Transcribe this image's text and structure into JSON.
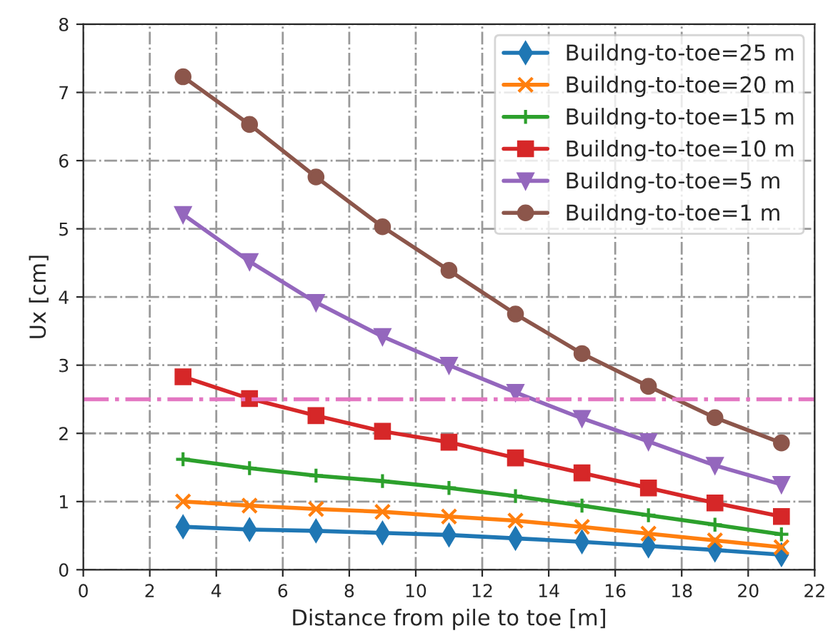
{
  "chart_data": {
    "type": "line",
    "xlabel": "Distance from pile to toe [m]",
    "ylabel": "Ux [cm]",
    "x": [
      3,
      5,
      7,
      9,
      11,
      13,
      15,
      17,
      19,
      21
    ],
    "series": [
      {
        "name": "Buildng-to-toe=25 m",
        "color": "#1f77b4",
        "marker": "diamond",
        "values": [
          0.63,
          0.59,
          0.57,
          0.54,
          0.51,
          0.46,
          0.41,
          0.35,
          0.29,
          0.22
        ]
      },
      {
        "name": "Buildng-to-toe=20 m",
        "color": "#ff7f0e",
        "marker": "x",
        "values": [
          1.0,
          0.94,
          0.89,
          0.85,
          0.78,
          0.72,
          0.63,
          0.53,
          0.43,
          0.33
        ]
      },
      {
        "name": "Buildng-to-toe=15 m",
        "color": "#2ca02c",
        "marker": "plus",
        "values": [
          1.62,
          1.49,
          1.38,
          1.3,
          1.2,
          1.08,
          0.94,
          0.8,
          0.66,
          0.52
        ]
      },
      {
        "name": "Buildng-to-toe=10 m",
        "color": "#d62728",
        "marker": "square",
        "values": [
          2.83,
          2.51,
          2.26,
          2.03,
          1.87,
          1.64,
          1.42,
          1.2,
          0.98,
          0.78
        ]
      },
      {
        "name": "Buildng-to-toe=5 m",
        "color": "#9467bd",
        "marker": "triangle_down",
        "values": [
          5.21,
          4.52,
          3.92,
          3.42,
          3.0,
          2.6,
          2.22,
          1.88,
          1.53,
          1.25
        ]
      },
      {
        "name": "Buildng-to-toe=1 m",
        "color": "#8c564b",
        "marker": "circle",
        "values": [
          7.23,
          6.53,
          5.76,
          5.03,
          4.39,
          3.75,
          3.17,
          2.69,
          2.23,
          1.86
        ]
      }
    ],
    "ref_lines": [
      {
        "axis": "y",
        "value": 2.5,
        "color": "#e377c2",
        "line_style": "dashdot"
      }
    ],
    "xlim": [
      0,
      22
    ],
    "xticks": [
      0,
      2,
      4,
      6,
      8,
      10,
      12,
      14,
      16,
      18,
      20,
      22
    ],
    "ylim": [
      0,
      8
    ],
    "yticks": [
      0,
      1,
      2,
      3,
      4,
      5,
      6,
      7,
      8
    ],
    "grid": true,
    "legend": "top right",
    "line_style": "solid"
  }
}
